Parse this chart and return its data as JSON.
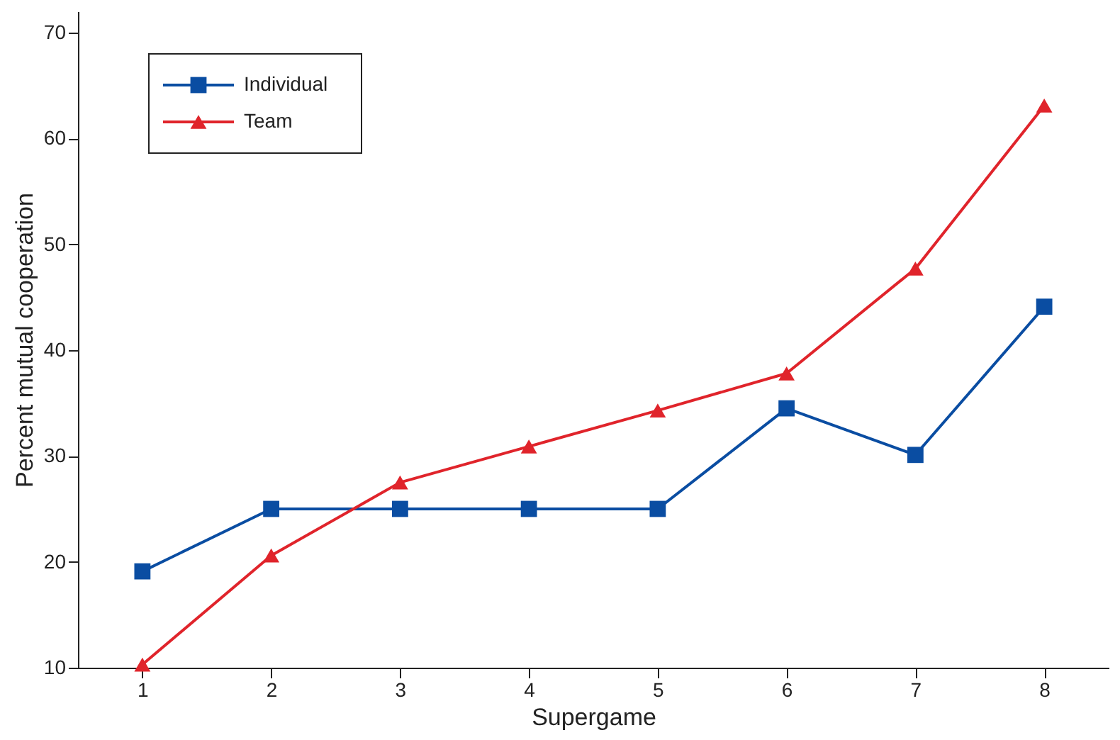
{
  "chart_data": {
    "type": "line",
    "xlabel": "Supergame",
    "ylabel": "Percent mutual cooperation",
    "x": [
      1,
      2,
      3,
      4,
      5,
      6,
      7,
      8
    ],
    "series": [
      {
        "name": "Individual",
        "color": "#0a4da2",
        "marker": "square",
        "values": [
          19.1,
          25,
          25,
          25,
          25,
          34.5,
          30.1,
          44.1
        ]
      },
      {
        "name": "Team",
        "color": "#e0242b",
        "marker": "triangle",
        "values": [
          10.3,
          20.6,
          27.5,
          30.9,
          34.3,
          37.8,
          47.7,
          63.1
        ]
      }
    ],
    "xlim": [
      0.5,
      8.5
    ],
    "xticks": [
      1,
      2,
      3,
      4,
      5,
      6,
      7,
      8
    ],
    "ylim": [
      10,
      72
    ],
    "yticks": [
      10,
      20,
      30,
      40,
      50,
      60,
      70
    ],
    "grid": false,
    "legend": "top left",
    "line_style": "solid"
  }
}
